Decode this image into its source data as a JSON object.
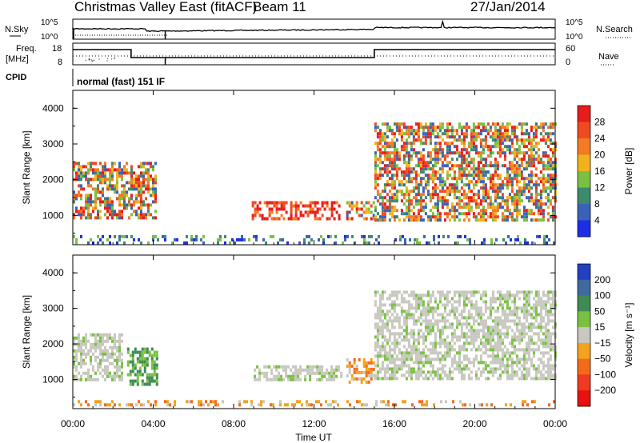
{
  "header": {
    "title": "Christmas Valley East (fitACF)",
    "beam": "Beam 11",
    "date": "27/Jan/2014"
  },
  "top_panels": {
    "nsky_label": "N.Sky",
    "nsky_ticks": [
      "10^5",
      "10^0"
    ],
    "nsearch_label": "N.Search",
    "nsearch_ticks": [
      "10^5",
      "10^0"
    ],
    "freq_label_line1": "Freq.",
    "freq_label_line2": "[MHz]",
    "freq_ticks": [
      "18",
      "8"
    ],
    "nave_label": "Nave",
    "nave_ticks": [
      "60",
      "0"
    ],
    "cpid_label": "CPID",
    "cpid_text": "normal (fast) 151 IF"
  },
  "chart_data": [
    {
      "type": "heatmap",
      "name": "power",
      "ylabel": "Slant Range [km]",
      "xlabel": "",
      "ylim": [
        180,
        4500
      ],
      "y_ticks": [
        "1000",
        "2000",
        "3000",
        "4000"
      ],
      "x_ticks": [
        "00:00",
        "04:00",
        "08:00",
        "12:00",
        "16:00",
        "20:00",
        "00:00"
      ],
      "colorbar": {
        "label": "Power [dB]",
        "tick_labels": [
          "4",
          "8",
          "12",
          "16",
          "20",
          "24",
          "28"
        ],
        "colors": [
          "#1e2ee6",
          "#3a62b6",
          "#3d8a6e",
          "#7ac143",
          "#f2b21c",
          "#f47a24",
          "#f04a22",
          "#e81c1c"
        ]
      },
      "echo_regions": [
        {
          "t_start": 0.0,
          "t_end": 4.1,
          "range_min": 900,
          "range_max": 2500,
          "level": "high"
        },
        {
          "t_start": 8.9,
          "t_end": 13.3,
          "range_min": 900,
          "range_max": 1400,
          "level": "max"
        },
        {
          "t_start": 13.6,
          "t_end": 15.0,
          "range_min": 900,
          "range_max": 1400,
          "level": "high"
        },
        {
          "t_start": 15.0,
          "t_end": 24.0,
          "range_min": 900,
          "range_max": 3600,
          "level": "high"
        },
        {
          "t_start": 0.0,
          "t_end": 24.0,
          "range_min": 250,
          "range_max": 450,
          "level": "low"
        }
      ]
    },
    {
      "type": "heatmap",
      "name": "velocity",
      "ylabel": "Slant Range [km]",
      "xlabel": "Time UT",
      "ylim": [
        180,
        4500
      ],
      "y_ticks": [
        "1000",
        "2000",
        "3000",
        "4000"
      ],
      "x_ticks": [
        "00:00",
        "04:00",
        "08:00",
        "12:00",
        "16:00",
        "20:00",
        "00:00"
      ],
      "colorbar": {
        "label": "Velocity [m s⁻¹]",
        "tick_labels": [
          "200",
          "100",
          "50",
          "15",
          "−15",
          "−50",
          "−100",
          "−200"
        ],
        "colors": [
          "#2340c0",
          "#3e6a9e",
          "#3f8a55",
          "#7ac143",
          "#c8c8c0",
          "#f2a21c",
          "#f46a1c",
          "#f03a22",
          "#e81010"
        ]
      },
      "echo_regions": [
        {
          "t_start": 0.0,
          "t_end": 2.5,
          "range_min": 1000,
          "range_max": 2300,
          "velocity": "-15..15"
        },
        {
          "t_start": 2.7,
          "t_end": 4.2,
          "range_min": 900,
          "range_max": 1900,
          "velocity": "15..100"
        },
        {
          "t_start": 9.0,
          "t_end": 13.4,
          "range_min": 950,
          "range_max": 1400,
          "velocity": "-15..15"
        },
        {
          "t_start": 13.6,
          "t_end": 15.0,
          "range_min": 950,
          "range_max": 1600,
          "velocity": "-50..-15"
        },
        {
          "t_start": 15.0,
          "t_end": 24.0,
          "range_min": 1000,
          "range_max": 3500,
          "velocity": "-15..15"
        },
        {
          "t_start": 0.0,
          "t_end": 24.0,
          "range_min": 250,
          "range_max": 420,
          "velocity": "-50..-15"
        }
      ]
    }
  ]
}
